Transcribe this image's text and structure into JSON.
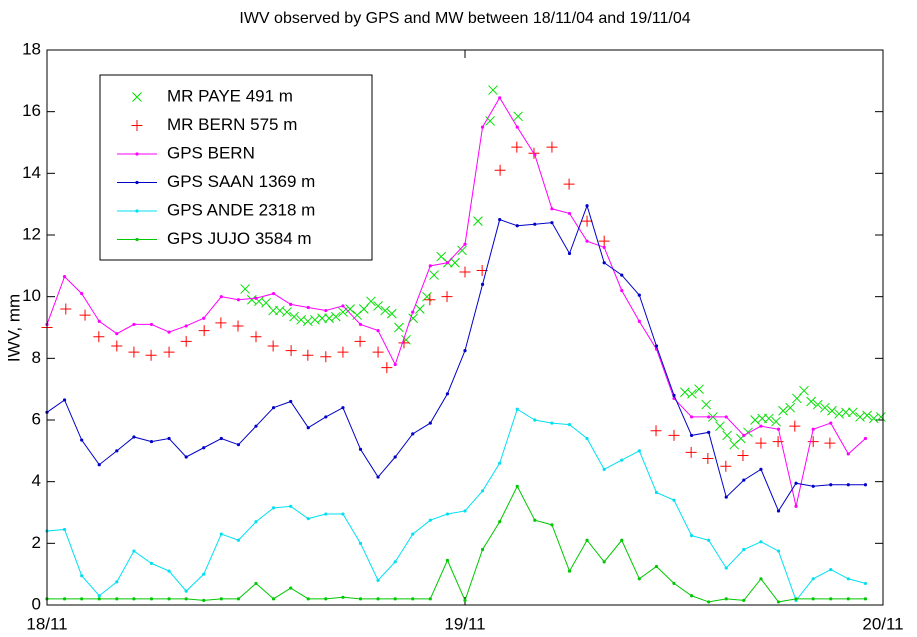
{
  "chart_data": {
    "type": "line",
    "title": "IWV observed by GPS and MW between 18/11/04 and 19/11/04",
    "ylabel": "IWV, mm",
    "xlim": [
      0,
      2
    ],
    "xticks": [
      {
        "value": 0,
        "label": "18/11"
      },
      {
        "value": 1,
        "label": "19/11"
      },
      {
        "value": 2,
        "label": "20/11"
      }
    ],
    "ylim": [
      0,
      18
    ],
    "yticks": [
      0,
      2,
      4,
      6,
      8,
      10,
      12,
      14,
      16,
      18
    ],
    "legend": "upper left",
    "series": [
      {
        "name": "MR PAYE 491 m",
        "color": "#00e000",
        "marker": "x",
        "x": [
          0.474,
          0.49,
          0.507,
          0.524,
          0.541,
          0.557,
          0.574,
          0.591,
          0.608,
          0.624,
          0.641,
          0.658,
          0.675,
          0.691,
          0.708,
          0.725,
          0.742,
          0.758,
          0.775,
          0.792,
          0.809,
          0.825,
          0.842,
          0.859,
          0.876,
          0.892,
          0.909,
          0.926,
          0.943,
          0.959,
          0.976,
          0.993,
          1.031,
          1.06,
          1.067,
          1.127,
          1.526,
          1.543,
          1.56,
          1.577,
          1.593,
          1.61,
          1.627,
          1.644,
          1.66,
          1.677,
          1.694,
          1.711,
          1.727,
          1.744,
          1.761,
          1.778,
          1.794,
          1.811,
          1.828,
          1.844,
          1.861,
          1.878,
          1.895,
          1.911,
          1.928,
          1.945,
          1.962,
          1.978,
          1.995
        ],
        "values": [
          10.25,
          9.9,
          9.85,
          9.8,
          9.55,
          9.55,
          9.5,
          9.35,
          9.25,
          9.2,
          9.25,
          9.3,
          9.3,
          9.35,
          9.5,
          9.6,
          9.4,
          9.6,
          9.85,
          9.7,
          9.55,
          9.45,
          9.0,
          8.6,
          9.3,
          9.6,
          10.0,
          10.7,
          11.3,
          11.1,
          11.1,
          11.5,
          12.45,
          15.7,
          16.7,
          15.85,
          6.9,
          6.85,
          7.0,
          6.5,
          6.1,
          5.8,
          5.5,
          5.2,
          5.4,
          5.6,
          6.0,
          6.05,
          6.05,
          5.95,
          6.3,
          6.4,
          6.7,
          6.95,
          6.6,
          6.5,
          6.4,
          6.3,
          6.2,
          6.25,
          6.25,
          6.1,
          6.15,
          6.05,
          6.1
        ]
      },
      {
        "name": "MR BERN 575 m",
        "color": "#ff0000",
        "marker": "+",
        "x": [
          0,
          0.045,
          0.091,
          0.124,
          0.167,
          0.208,
          0.249,
          0.292,
          0.333,
          0.376,
          0.416,
          0.457,
          0.5,
          0.541,
          0.584,
          0.624,
          0.667,
          0.708,
          0.749,
          0.792,
          0.813,
          0.854,
          0.916,
          0.957,
          1.0,
          1.041,
          1.084,
          1.124,
          1.165,
          1.208,
          1.249,
          1.292,
          1.333,
          1.457,
          1.5,
          1.541,
          1.581,
          1.624,
          1.665,
          1.708,
          1.749,
          1.789,
          1.833,
          1.873
        ],
        "values": [
          9.0,
          9.6,
          9.4,
          8.7,
          8.4,
          8.2,
          8.1,
          8.2,
          8.55,
          8.9,
          9.15,
          9.05,
          8.7,
          8.4,
          8.25,
          8.1,
          8.05,
          8.2,
          8.55,
          8.2,
          7.7,
          8.5,
          9.9,
          10.0,
          10.8,
          10.85,
          14.1,
          14.85,
          14.65,
          14.85,
          13.65,
          12.45,
          11.8,
          5.65,
          5.5,
          4.95,
          4.75,
          4.5,
          4.85,
          5.25,
          5.3,
          5.8,
          5.3,
          5.25
        ]
      },
      {
        "name": "GPS BERN",
        "color": "#ff00ff",
        "marker": "dot-line",
        "x": [
          0,
          0.042,
          0.083,
          0.125,
          0.167,
          0.208,
          0.25,
          0.292,
          0.333,
          0.375,
          0.417,
          0.458,
          0.5,
          0.542,
          0.583,
          0.625,
          0.667,
          0.708,
          0.75,
          0.792,
          0.833,
          0.875,
          0.917,
          0.958,
          1,
          1.042,
          1.083,
          1.125,
          1.167,
          1.208,
          1.25,
          1.292,
          1.333,
          1.375,
          1.417,
          1.458,
          1.5,
          1.542,
          1.583,
          1.625,
          1.667,
          1.708,
          1.75,
          1.792,
          1.833,
          1.875,
          1.917,
          1.958
        ],
        "values": [
          9.1,
          10.65,
          10.1,
          9.2,
          8.8,
          9.1,
          9.1,
          8.85,
          9.05,
          9.3,
          10.0,
          9.9,
          9.95,
          10.1,
          9.75,
          9.65,
          9.55,
          9.7,
          9.1,
          8.9,
          7.8,
          9.5,
          11.0,
          11.1,
          11.7,
          15.5,
          16.45,
          15.5,
          14.6,
          12.85,
          12.7,
          11.8,
          11.6,
          10.2,
          9.2,
          8.3,
          6.7,
          6.1,
          6.1,
          6.1,
          5.5,
          5.8,
          5.7,
          3.2,
          5.7,
          5.9,
          4.9,
          5.4
        ]
      },
      {
        "name": "GPS SAAN 1369 m",
        "color": "#0000c8",
        "marker": "dot-line",
        "x": [
          0,
          0.042,
          0.083,
          0.125,
          0.167,
          0.208,
          0.25,
          0.292,
          0.333,
          0.375,
          0.417,
          0.458,
          0.5,
          0.542,
          0.583,
          0.625,
          0.667,
          0.708,
          0.75,
          0.792,
          0.833,
          0.875,
          0.917,
          0.958,
          1,
          1.042,
          1.083,
          1.125,
          1.167,
          1.208,
          1.25,
          1.292,
          1.333,
          1.375,
          1.417,
          1.458,
          1.5,
          1.542,
          1.583,
          1.625,
          1.667,
          1.708,
          1.75,
          1.792,
          1.833,
          1.875,
          1.917,
          1.958
        ],
        "values": [
          6.25,
          6.65,
          5.35,
          4.55,
          5.0,
          5.45,
          5.3,
          5.4,
          4.8,
          5.1,
          5.4,
          5.2,
          5.8,
          6.4,
          6.6,
          5.75,
          6.1,
          6.4,
          5.05,
          4.15,
          4.8,
          5.55,
          5.9,
          6.85,
          8.25,
          10.4,
          12.5,
          12.3,
          12.35,
          12.4,
          11.4,
          12.95,
          11.1,
          10.7,
          10.05,
          8.4,
          6.8,
          5.5,
          5.6,
          3.5,
          4.05,
          4.4,
          3.05,
          3.95,
          3.85,
          3.9,
          3.9,
          3.9
        ]
      },
      {
        "name": "GPS ANDE 2318 m",
        "color": "#00e0f0",
        "marker": "dot-line",
        "x": [
          0,
          0.042,
          0.083,
          0.125,
          0.167,
          0.208,
          0.25,
          0.292,
          0.333,
          0.375,
          0.417,
          0.458,
          0.5,
          0.542,
          0.583,
          0.625,
          0.667,
          0.708,
          0.75,
          0.792,
          0.833,
          0.875,
          0.917,
          0.958,
          1,
          1.042,
          1.083,
          1.125,
          1.167,
          1.208,
          1.25,
          1.292,
          1.333,
          1.375,
          1.417,
          1.458,
          1.5,
          1.542,
          1.583,
          1.625,
          1.667,
          1.708,
          1.75,
          1.792,
          1.833,
          1.875,
          1.917,
          1.958
        ],
        "values": [
          2.4,
          2.45,
          0.95,
          0.3,
          0.75,
          1.75,
          1.35,
          1.1,
          0.45,
          1.0,
          2.3,
          2.1,
          2.7,
          3.15,
          3.2,
          2.8,
          2.95,
          2.95,
          2.0,
          0.8,
          1.4,
          2.3,
          2.75,
          2.95,
          3.05,
          3.7,
          4.6,
          6.35,
          6.0,
          5.9,
          5.85,
          5.4,
          4.4,
          4.7,
          5.0,
          3.65,
          3.4,
          2.25,
          2.1,
          1.2,
          1.8,
          2.05,
          1.75,
          0.15,
          0.85,
          1.15,
          0.85,
          0.7
        ]
      },
      {
        "name": "GPS JUJO 3584 m",
        "color": "#00c800",
        "marker": "dot-line",
        "x": [
          0,
          0.042,
          0.083,
          0.125,
          0.167,
          0.208,
          0.25,
          0.292,
          0.333,
          0.375,
          0.417,
          0.458,
          0.5,
          0.542,
          0.583,
          0.625,
          0.667,
          0.708,
          0.75,
          0.792,
          0.833,
          0.875,
          0.917,
          0.958,
          1,
          1.042,
          1.083,
          1.125,
          1.167,
          1.208,
          1.25,
          1.292,
          1.333,
          1.375,
          1.417,
          1.458,
          1.5,
          1.542,
          1.583,
          1.625,
          1.667,
          1.708,
          1.75,
          1.792,
          1.833,
          1.875,
          1.917,
          1.958
        ],
        "values": [
          0.2,
          0.2,
          0.2,
          0.2,
          0.2,
          0.2,
          0.2,
          0.2,
          0.2,
          0.15,
          0.2,
          0.2,
          0.7,
          0.2,
          0.55,
          0.2,
          0.2,
          0.25,
          0.2,
          0.2,
          0.2,
          0.2,
          0.2,
          1.45,
          0.15,
          1.8,
          2.7,
          3.85,
          2.75,
          2.6,
          1.1,
          2.1,
          1.4,
          2.1,
          0.85,
          1.25,
          0.7,
          0.3,
          0.1,
          0.2,
          0.15,
          0.85,
          0.1,
          0.2,
          0.2,
          0.2,
          0.2,
          0.2
        ]
      }
    ]
  }
}
